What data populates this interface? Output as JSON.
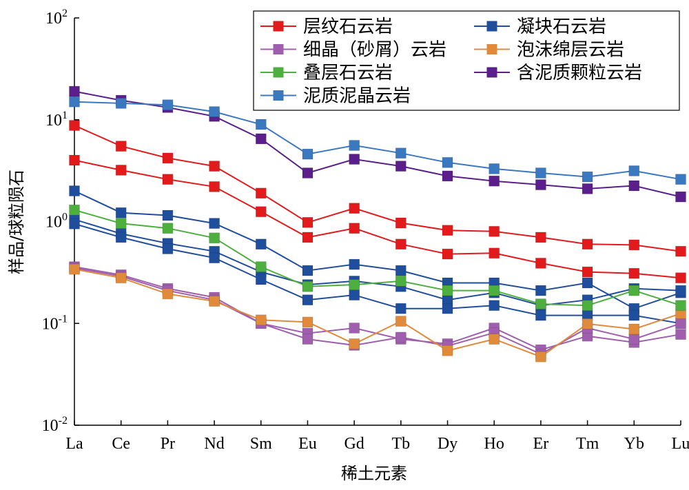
{
  "chart_data": {
    "type": "line",
    "xlabel": "稀土元素",
    "ylabel": "样品/球粒陨石",
    "yscale": "log",
    "ylim": [
      0.01,
      100
    ],
    "yticks": [
      {
        "base": "10",
        "exp": "2"
      },
      {
        "base": "10",
        "exp": "1"
      },
      {
        "base": "10",
        "exp": "0"
      },
      {
        "base": "10",
        "exp": "-1"
      },
      {
        "base": "10",
        "exp": "-2"
      }
    ],
    "categories": [
      "La",
      "Ce",
      "Pr",
      "Nd",
      "Sm",
      "Eu",
      "Gd",
      "Tb",
      "Dy",
      "Ho",
      "Er",
      "Tm",
      "Yb",
      "Lu"
    ],
    "legend_position": "top-right",
    "grid": false,
    "series": [
      {
        "name": "层纹石云岩",
        "color": "#e31a1c",
        "values": [
          8.8,
          5.5,
          4.2,
          3.5,
          1.9,
          0.98,
          1.35,
          0.97,
          0.82,
          0.8,
          0.7,
          0.6,
          0.59,
          0.51
        ]
      },
      {
        "name": "",
        "color": "#e31a1c",
        "values": [
          4.0,
          3.2,
          2.6,
          2.2,
          1.25,
          0.7,
          0.86,
          0.6,
          0.48,
          0.49,
          0.39,
          0.32,
          0.31,
          0.28
        ]
      },
      {
        "name": "凝块石云岩",
        "color": "#1f4e9c",
        "values": [
          2.0,
          1.22,
          1.15,
          0.96,
          0.6,
          0.33,
          0.38,
          0.33,
          0.25,
          0.25,
          0.21,
          0.25,
          0.14,
          0.2
        ]
      },
      {
        "name": "",
        "color": "#1f4e9c",
        "values": [
          1.05,
          0.76,
          0.61,
          0.51,
          0.32,
          0.24,
          0.26,
          0.23,
          0.17,
          0.2,
          0.15,
          0.17,
          0.22,
          0.21
        ]
      },
      {
        "name": "",
        "color": "#1f4e9c",
        "values": [
          0.95,
          0.7,
          0.54,
          0.44,
          0.27,
          0.17,
          0.19,
          0.14,
          0.14,
          0.15,
          0.12,
          0.12,
          0.12,
          0.1
        ]
      },
      {
        "name": "细晶（砂屑）云岩",
        "color": "#a05fae",
        "values": [
          0.36,
          0.3,
          0.22,
          0.18,
          0.1,
          0.08,
          0.09,
          0.07,
          0.063,
          0.09,
          0.055,
          0.075,
          0.065,
          0.078
        ]
      },
      {
        "name": "",
        "color": "#a05fae",
        "values": [
          0.35,
          0.29,
          0.21,
          0.17,
          0.1,
          0.07,
          0.061,
          0.073,
          0.06,
          0.081,
          0.05,
          0.09,
          0.07,
          0.1
        ]
      },
      {
        "name": "泡沫绵层云岩",
        "color": "#e08a3c",
        "values": [
          0.34,
          0.28,
          0.195,
          0.165,
          0.108,
          0.103,
          0.063,
          0.105,
          0.054,
          0.07,
          0.047,
          0.099,
          0.088,
          0.125
        ]
      },
      {
        "name": "叠层石云岩",
        "color": "#4caf3e",
        "values": [
          1.3,
          0.96,
          0.86,
          0.69,
          0.36,
          0.23,
          0.24,
          0.26,
          0.21,
          0.21,
          0.155,
          0.15,
          0.21,
          0.15
        ]
      },
      {
        "name": "含泥质颗粒云岩",
        "color": "#5a1f8a",
        "values": [
          19.0,
          15.5,
          13.2,
          10.8,
          6.5,
          3.0,
          4.1,
          3.5,
          2.8,
          2.5,
          2.3,
          2.1,
          2.25,
          1.75
        ]
      },
      {
        "name": "泥质泥晶云岩",
        "color": "#3a78c0",
        "values": [
          15.0,
          14.5,
          14.0,
          12.0,
          9.0,
          4.6,
          5.6,
          4.7,
          3.8,
          3.3,
          3.0,
          2.75,
          3.15,
          2.6
        ]
      }
    ]
  }
}
